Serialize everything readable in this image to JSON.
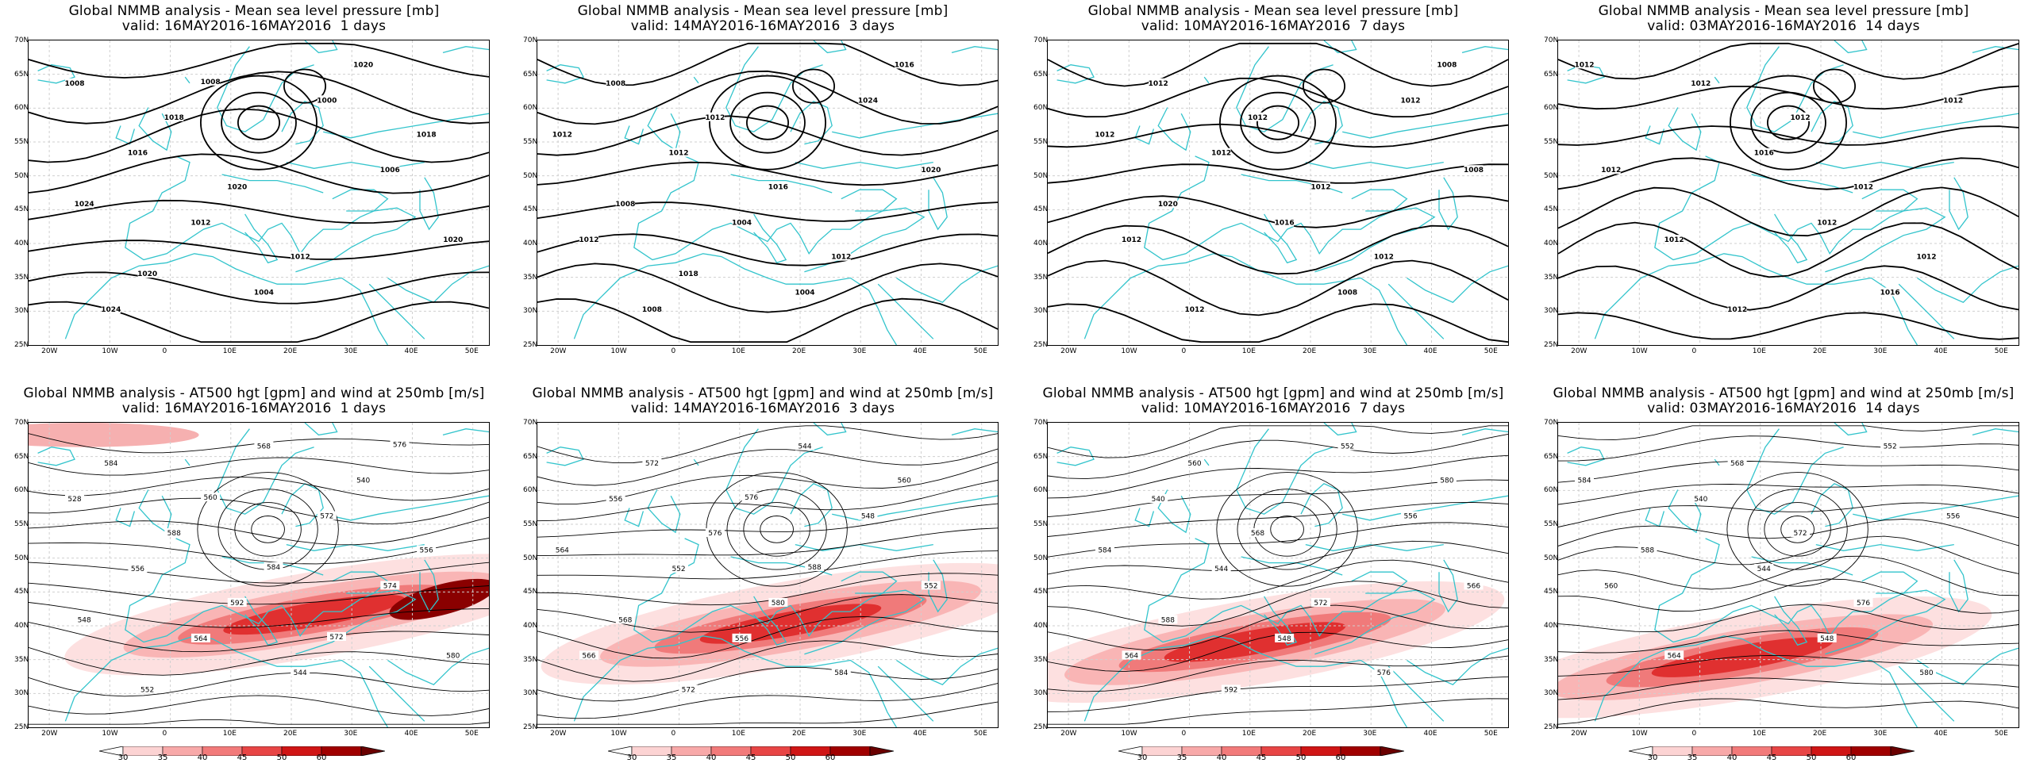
{
  "axes": {
    "lat_labels": [
      "70N",
      "65N",
      "60N",
      "55N",
      "50N",
      "45N",
      "40N",
      "35N",
      "30N",
      "25N"
    ],
    "lon_labels": [
      "20W",
      "10W",
      "0",
      "10E",
      "20E",
      "30E",
      "40E",
      "50E"
    ]
  },
  "panels": [
    {
      "row": 0,
      "col": 0,
      "kind": "mslp",
      "title": "Global NMMB analysis - Mean sea level pressure [mb]",
      "subtitle": "valid: 16MAY2016-16MAY2016  1 days",
      "contour_labels": [
        "1008",
        "1016",
        "1012",
        "1004",
        "1000",
        "1006",
        "1020",
        "1024",
        "1018",
        "1020",
        "1012",
        "1020",
        "1018",
        "1024",
        "1020",
        "1008"
      ]
    },
    {
      "row": 0,
      "col": 1,
      "kind": "mslp",
      "title": "Global NMMB analysis - Mean sea level pressure [mb]",
      "subtitle": "valid: 14MAY2016-16MAY2016  3 days",
      "contour_labels": [
        "1008",
        "1012",
        "1004",
        "1004",
        "1024",
        "1020",
        "1012",
        "1008",
        "1012",
        "1016",
        "1012",
        "1016",
        "1012",
        "1008",
        "1018"
      ]
    },
    {
      "row": 0,
      "col": 2,
      "kind": "mslp",
      "title": "Global NMMB analysis - Mean sea level pressure [mb]",
      "subtitle": "valid: 10MAY2016-16MAY2016  7 days",
      "contour_labels": [
        "1012",
        "1012",
        "1016",
        "1008",
        "1012",
        "1008",
        "1012",
        "1012",
        "1012",
        "1012",
        "1012",
        "1008",
        "1012",
        "1020"
      ]
    },
    {
      "row": 0,
      "col": 3,
      "kind": "mslp",
      "title": "Global NMMB analysis - Mean sea level pressure [mb]",
      "subtitle": "valid: 03MAY2016-16MAY2016  14 days",
      "contour_labels": [
        "1012",
        "1016",
        "1012",
        "1016",
        "1012",
        "1012",
        "1012",
        "1012",
        "1012",
        "1012",
        "1012",
        "1012"
      ]
    },
    {
      "row": 1,
      "col": 0,
      "kind": "z500",
      "title": "Global NMMB analysis - AT500 hgt [gpm] and wind at 250mb [m/s]",
      "subtitle": "valid: 16MAY2016-16MAY2016  1 days",
      "contour_labels": [
        "528",
        "556",
        "564",
        "568",
        "572",
        "574",
        "580",
        "584",
        "588",
        "592",
        "544",
        "540",
        "556",
        "548",
        "552",
        "560",
        "584",
        "572",
        "576"
      ]
    },
    {
      "row": 1,
      "col": 1,
      "kind": "z500",
      "title": "Global NMMB analysis - AT500 hgt [gpm] and wind at 250mb [m/s]",
      "subtitle": "valid: 14MAY2016-16MAY2016  3 days",
      "contour_labels": [
        "556",
        "552",
        "556",
        "544",
        "548",
        "552",
        "566",
        "572",
        "576",
        "580",
        "584",
        "560",
        "564",
        "568",
        "572",
        "576",
        "588"
      ]
    },
    {
      "row": 1,
      "col": 2,
      "kind": "z500",
      "title": "Global NMMB analysis - AT500 hgt [gpm] and wind at 250mb [m/s]",
      "subtitle": "valid: 10MAY2016-16MAY2016  7 days",
      "contour_labels": [
        "540",
        "544",
        "548",
        "552",
        "556",
        "566",
        "564",
        "560",
        "568",
        "572",
        "576",
        "580",
        "584",
        "588",
        "592"
      ]
    },
    {
      "row": 1,
      "col": 3,
      "kind": "z500",
      "title": "Global NMMB analysis - AT500 hgt [gpm] and wind at 250mb [m/s]",
      "subtitle": "valid: 03MAY2016-16MAY2016  14 days",
      "contour_labels": [
        "540",
        "544",
        "548",
        "552",
        "556",
        "560",
        "564",
        "568",
        "572",
        "576",
        "580",
        "584",
        "588"
      ]
    }
  ],
  "colorbar": {
    "labels": [
      "30",
      "35",
      "40",
      "45",
      "50",
      "60"
    ],
    "colors": [
      "#ffffff",
      "#fcd3d3",
      "#f8a9a9",
      "#f27a7a",
      "#e84545",
      "#d01515",
      "#a00000",
      "#6a0000"
    ]
  },
  "colors": {
    "coastline": "#33c4cc",
    "contour": "#000000",
    "grid": "#cfcfcf"
  }
}
